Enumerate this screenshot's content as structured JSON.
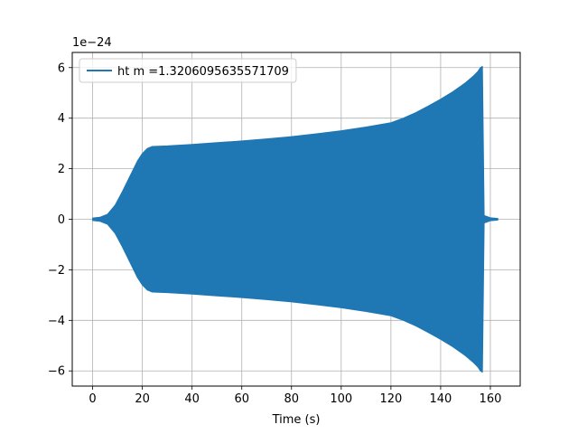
{
  "chart_data": {
    "type": "area",
    "title": "",
    "xlabel": "Time (s)",
    "ylabel": "",
    "y_offset_text": "1e−24",
    "xlim": [
      -8.2,
      172
    ],
    "ylim": [
      -6.6,
      6.6
    ],
    "x_ticks": [
      0,
      20,
      40,
      60,
      80,
      100,
      120,
      140,
      160
    ],
    "x_tick_labels": [
      "0",
      "20",
      "40",
      "60",
      "80",
      "100",
      "120",
      "140",
      "160"
    ],
    "y_ticks": [
      -6,
      -4,
      -2,
      0,
      2,
      4,
      6
    ],
    "y_tick_labels": [
      "−6",
      "−4",
      "−2",
      "0",
      "2",
      "4",
      "6"
    ],
    "grid": true,
    "legend_position": "top-left",
    "color": "#1f77b4",
    "series": [
      {
        "name": "ht m =1.3206095635571709",
        "kind": "oscillation envelope (symmetric about 0)",
        "envelope": {
          "x": [
            0,
            3,
            6,
            9,
            12,
            15,
            18,
            20,
            22,
            24,
            30,
            40,
            50,
            60,
            70,
            80,
            90,
            100,
            110,
            120,
            125,
            130,
            135,
            140,
            145,
            150,
            153,
            155,
            156,
            156.8,
            157.5,
            160,
            163
          ],
          "upper": [
            0.05,
            0.08,
            0.2,
            0.55,
            1.1,
            1.7,
            2.3,
            2.6,
            2.8,
            2.88,
            2.9,
            2.96,
            3.03,
            3.1,
            3.18,
            3.27,
            3.38,
            3.5,
            3.65,
            3.82,
            4.0,
            4.22,
            4.48,
            4.75,
            5.05,
            5.4,
            5.65,
            5.85,
            6.0,
            6.05,
            0.15,
            0.06,
            0.03
          ],
          "lower": [
            -0.05,
            -0.08,
            -0.2,
            -0.55,
            -1.1,
            -1.7,
            -2.3,
            -2.6,
            -2.8,
            -2.88,
            -2.9,
            -2.96,
            -3.03,
            -3.1,
            -3.18,
            -3.27,
            -3.38,
            -3.5,
            -3.65,
            -3.82,
            -4.0,
            -4.22,
            -4.48,
            -4.75,
            -5.05,
            -5.4,
            -5.65,
            -5.85,
            -6.0,
            -6.05,
            -0.15,
            -0.06,
            -0.03
          ]
        }
      }
    ]
  }
}
